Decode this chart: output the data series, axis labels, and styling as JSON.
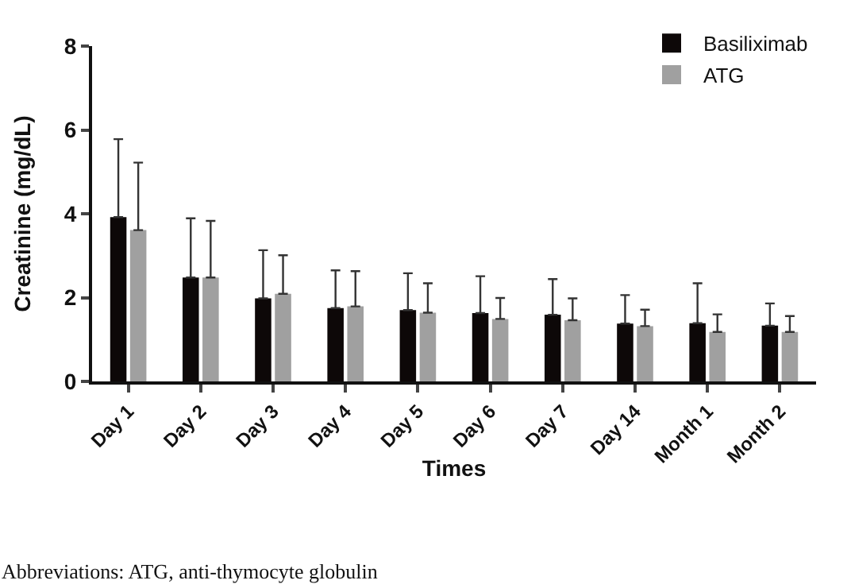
{
  "chart_data": {
    "type": "bar",
    "xlabel": "Times",
    "ylabel": "Creatinine (mg/dL)",
    "categories": [
      "Day 1",
      "Day 2",
      "Day 3",
      "Day 4",
      "Day 5",
      "Day 6",
      "Day 7",
      "Day 14",
      "Month 1",
      "Month 2"
    ],
    "series": [
      {
        "name": "Basiliximab",
        "color": "#0d0808",
        "values": [
          3.92,
          2.48,
          1.98,
          1.75,
          1.7,
          1.63,
          1.59,
          1.38,
          1.39,
          1.33
        ],
        "errors": [
          [
            3.92,
            5.78
          ],
          [
            2.48,
            3.89
          ],
          [
            1.98,
            3.13
          ],
          [
            1.75,
            2.65
          ],
          [
            1.7,
            2.58
          ],
          [
            1.63,
            2.51
          ],
          [
            1.59,
            2.44
          ],
          [
            1.38,
            2.06
          ],
          [
            1.39,
            2.34
          ],
          [
            1.33,
            1.86
          ]
        ]
      },
      {
        "name": "ATG",
        "color": "#a0a0a0",
        "values": [
          3.61,
          2.48,
          2.09,
          1.79,
          1.64,
          1.49,
          1.46,
          1.32,
          1.18,
          1.18
        ],
        "errors": [
          [
            3.61,
            5.22
          ],
          [
            2.48,
            3.83
          ],
          [
            2.09,
            3.01
          ],
          [
            1.79,
            2.63
          ],
          [
            1.64,
            2.34
          ],
          [
            1.49,
            1.99
          ],
          [
            1.46,
            1.98
          ],
          [
            1.32,
            1.71
          ],
          [
            1.18,
            1.6
          ],
          [
            1.18,
            1.56
          ]
        ]
      }
    ],
    "ylim": [
      0,
      8
    ],
    "yticks": [
      0,
      2,
      4,
      6,
      8
    ],
    "grid": false,
    "legend": "top right",
    "annotations": [
      "Abbreviations: ATG, anti-thymocyte globulin"
    ]
  }
}
